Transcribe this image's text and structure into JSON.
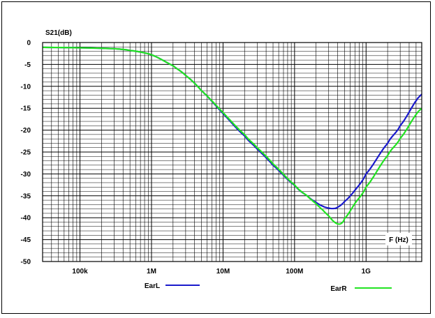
{
  "chart_data": {
    "type": "line",
    "ylabel": "S21(dB)",
    "xlabel": "F (Hz)",
    "x_scale": "log",
    "xlim": [
      30000,
      6000000000
    ],
    "ylim": [
      -50,
      0
    ],
    "x_ticks": [
      {
        "value": 100000,
        "label": "100k"
      },
      {
        "value": 1000000,
        "label": "1M"
      },
      {
        "value": 10000000,
        "label": "10M"
      },
      {
        "value": 100000000,
        "label": "100M"
      },
      {
        "value": 1000000000,
        "label": "1G"
      }
    ],
    "y_ticks": [
      {
        "value": 0,
        "label": "0"
      },
      {
        "value": -5,
        "label": "-5"
      },
      {
        "value": -10,
        "label": "-10"
      },
      {
        "value": -15,
        "label": "-15"
      },
      {
        "value": -20,
        "label": "-20"
      },
      {
        "value": -25,
        "label": "-25"
      },
      {
        "value": -30,
        "label": "-30"
      },
      {
        "value": -35,
        "label": "-35"
      },
      {
        "value": -40,
        "label": "-40"
      },
      {
        "value": -45,
        "label": "-45"
      },
      {
        "value": -50,
        "label": "-50"
      }
    ],
    "grid": true,
    "series": [
      {
        "name": "EarL",
        "color": "#1a1acc",
        "x": [
          30000,
          100000,
          300000,
          500000,
          1000000,
          2000000,
          3000000,
          5000000,
          10000000,
          20000000,
          30000000,
          50000000,
          100000000,
          150000000,
          200000000,
          250000000,
          300000000,
          350000000,
          400000000,
          500000000,
          700000000,
          1000000000,
          2000000000,
          3000000000,
          6000000000
        ],
        "y": [
          -1.1,
          -1.2,
          -1.4,
          -1.8,
          -2.8,
          -5.3,
          -7.5,
          -11.0,
          -16.2,
          -21.3,
          -24.3,
          -28.0,
          -32.6,
          -35.0,
          -36.5,
          -37.4,
          -37.8,
          -37.9,
          -37.6,
          -36.3,
          -33.7,
          -30.0,
          -23.0,
          -19.0,
          -11.8
        ]
      },
      {
        "name": "EarR",
        "color": "#22e322",
        "x": [
          30000,
          100000,
          300000,
          500000,
          1000000,
          2000000,
          3000000,
          5000000,
          10000000,
          20000000,
          30000000,
          50000000,
          100000000,
          150000000,
          200000000,
          250000000,
          300000000,
          350000000,
          400000000,
          450000000,
          500000000,
          700000000,
          1000000000,
          2000000000,
          3000000000,
          6000000000
        ],
        "y": [
          -1.1,
          -1.2,
          -1.4,
          -1.8,
          -2.8,
          -5.3,
          -7.5,
          -11.0,
          -16.0,
          -21.0,
          -24.0,
          -27.7,
          -32.5,
          -35.0,
          -36.8,
          -38.3,
          -39.6,
          -40.8,
          -41.4,
          -41.3,
          -40.2,
          -36.7,
          -33.0,
          -25.8,
          -21.9,
          -15.0
        ]
      }
    ]
  }
}
